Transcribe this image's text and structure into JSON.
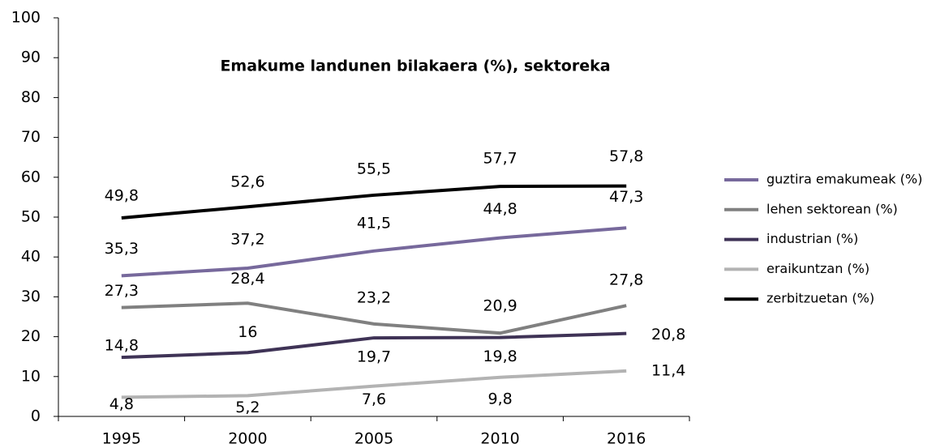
{
  "chart_data": {
    "type": "line",
    "title": "Emakume landunen bilakaera (%), sektoreka",
    "categories": [
      "1995",
      "2000",
      "2005",
      "2010",
      "2016"
    ],
    "series": [
      {
        "name": "guztira emakumeak (%)",
        "color": "#77699c",
        "values": [
          35.3,
          37.2,
          41.5,
          44.8,
          47.3
        ],
        "value_labels": [
          "35,3",
          "37,2",
          "41,5",
          "44,8",
          "47,3"
        ]
      },
      {
        "name": "lehen sektorean (%)",
        "color": "#808080",
        "values": [
          27.3,
          28.4,
          23.2,
          20.9,
          27.8
        ],
        "value_labels": [
          "27,3",
          "28,4",
          "23,2",
          "20,9",
          "27,8"
        ]
      },
      {
        "name": "industrian (%)",
        "color": "#3f3356",
        "values": [
          14.8,
          16,
          19.7,
          19.8,
          20.8
        ],
        "value_labels": [
          "14,8",
          "16",
          "19,7",
          "19,8",
          "20,8"
        ]
      },
      {
        "name": "eraikuntzan (%)",
        "color": "#b3b3b3",
        "values": [
          4.8,
          5.2,
          7.6,
          9.8,
          11.4
        ],
        "value_labels": [
          "4,8",
          "5,2",
          "7,6",
          "9,8",
          "11,4"
        ]
      },
      {
        "name": "zerbitzuetan (%)",
        "color": "#000000",
        "values": [
          49.8,
          52.6,
          55.5,
          57.7,
          57.8
        ],
        "value_labels": [
          "49,8",
          "52,6",
          "55,5",
          "57,7",
          "57,8"
        ]
      }
    ],
    "ylim": [
      0,
      100
    ],
    "yticks": [
      0,
      10,
      20,
      30,
      40,
      50,
      60,
      70,
      80,
      90,
      100
    ],
    "grid": false,
    "legend": "right"
  }
}
